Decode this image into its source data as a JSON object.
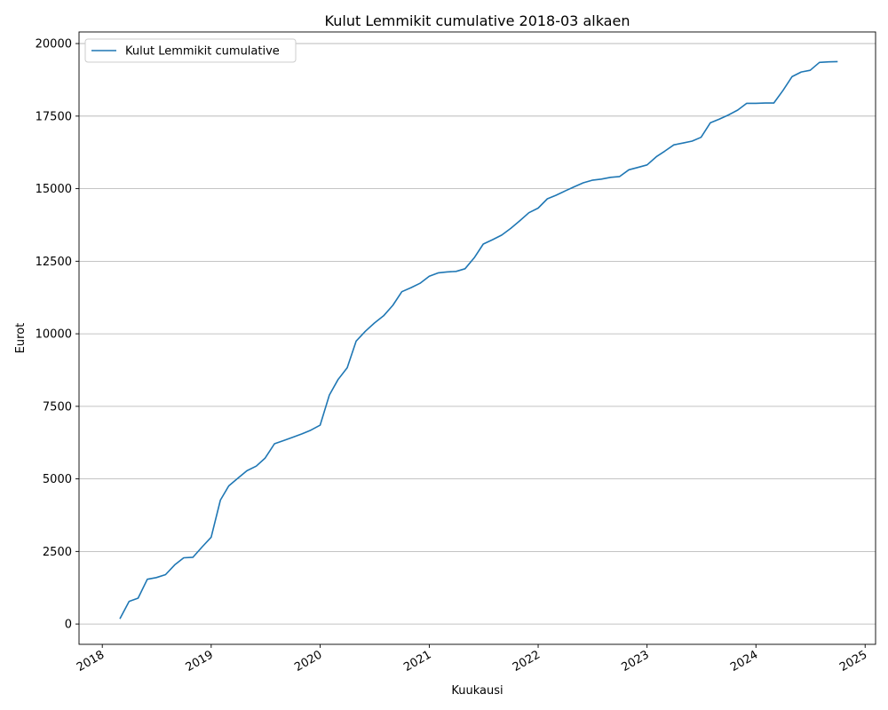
{
  "chart_data": {
    "type": "line",
    "title": "Kulut Lemmikit cumulative 2018-03 alkaen",
    "xlabel": "Kuukausi",
    "ylabel": "Eurot",
    "xlim": [
      "2017-10-15",
      "2025-02-05"
    ],
    "ylim": [
      -700,
      20400
    ],
    "y_ticks": [
      0,
      2500,
      5000,
      7500,
      10000,
      12500,
      15000,
      17500,
      20000
    ],
    "x_ticks": [
      {
        "label": "2018",
        "date": "2018-01-01"
      },
      {
        "label": "2019",
        "date": "2019-01-01"
      },
      {
        "label": "2020",
        "date": "2020-01-01"
      },
      {
        "label": "2021",
        "date": "2021-01-01"
      },
      {
        "label": "2022",
        "date": "2022-01-01"
      },
      {
        "label": "2023",
        "date": "2023-01-01"
      },
      {
        "label": "2024",
        "date": "2024-01-01"
      },
      {
        "label": "2025",
        "date": "2025-01-01"
      }
    ],
    "grid": "horizontal",
    "legend_position": "top-left",
    "colors": {
      "line": "#1f77b4",
      "grid": "#b0b0b0"
    },
    "series": [
      {
        "name": "Kulut Lemmikit cumulative",
        "x": [
          "2018-03",
          "2018-04",
          "2018-05",
          "2018-06",
          "2018-07",
          "2018-08",
          "2018-09",
          "2018-10",
          "2018-11",
          "2018-12",
          "2019-01",
          "2019-02",
          "2019-03",
          "2019-04",
          "2019-05",
          "2019-06",
          "2019-07",
          "2019-08",
          "2019-09",
          "2019-10",
          "2019-11",
          "2019-12",
          "2020-01",
          "2020-02",
          "2020-03",
          "2020-04",
          "2020-05",
          "2020-06",
          "2020-07",
          "2020-08",
          "2020-09",
          "2020-10",
          "2020-11",
          "2020-12",
          "2021-01",
          "2021-02",
          "2021-03",
          "2021-04",
          "2021-05",
          "2021-06",
          "2021-07",
          "2021-08",
          "2021-09",
          "2021-10",
          "2021-11",
          "2021-12",
          "2022-01",
          "2022-02",
          "2022-03",
          "2022-04",
          "2022-05",
          "2022-06",
          "2022-07",
          "2022-08",
          "2022-09",
          "2022-10",
          "2022-11",
          "2022-12",
          "2023-01",
          "2023-02",
          "2023-03",
          "2023-04",
          "2023-05",
          "2023-06",
          "2023-07",
          "2023-08",
          "2023-09",
          "2023-10",
          "2023-11",
          "2023-12",
          "2024-01",
          "2024-02",
          "2024-03",
          "2024-04",
          "2024-05",
          "2024-06",
          "2024-07",
          "2024-08",
          "2024-09",
          "2024-10"
        ],
        "values": [
          180,
          780,
          890,
          1540,
          1600,
          1700,
          2040,
          2280,
          2300,
          2650,
          2990,
          4270,
          4760,
          5030,
          5280,
          5440,
          5720,
          6210,
          6320,
          6430,
          6550,
          6680,
          6850,
          7890,
          8420,
          8830,
          9750,
          10090,
          10370,
          10620,
          10980,
          11450,
          11590,
          11740,
          11980,
          12100,
          12130,
          12150,
          12240,
          12620,
          13090,
          13240,
          13400,
          13630,
          13900,
          14170,
          14330,
          14650,
          14770,
          14920,
          15060,
          15200,
          15290,
          15330,
          15390,
          15420,
          15650,
          15730,
          15820,
          16100,
          16290,
          16510,
          16570,
          16640,
          16770,
          17270,
          17400,
          17540,
          17710,
          17940,
          17940,
          17950,
          17950,
          18390,
          18860,
          19020,
          19080,
          19350,
          19370,
          19380
        ]
      }
    ]
  }
}
